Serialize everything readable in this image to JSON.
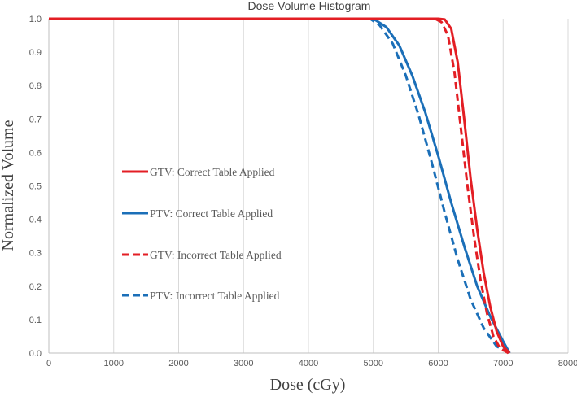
{
  "chart_data": {
    "type": "line",
    "title": "Dose Volume Histogram",
    "xlabel": "Dose (cGy)",
    "ylabel": "Normalized Volume",
    "xlim": [
      0,
      8000
    ],
    "ylim": [
      0,
      1.0
    ],
    "xticks": [
      "0",
      "1000",
      "2000",
      "3000",
      "4000",
      "5000",
      "6000",
      "7000",
      "8000"
    ],
    "yticks": [
      "0.0",
      "0.1",
      "0.2",
      "0.3",
      "0.4",
      "0.5",
      "0.6",
      "0.7",
      "0.8",
      "0.9",
      "1.0"
    ],
    "grid": "vertical",
    "legend_position": "left",
    "series": [
      {
        "name": "GTV: Correct Table Applied",
        "color": "#e31e24",
        "dash": "solid",
        "x": [
          0,
          6000,
          6100,
          6200,
          6300,
          6400,
          6500,
          6600,
          6700,
          6800,
          6900,
          7000,
          7100
        ],
        "y": [
          1.0,
          1.0,
          0.998,
          0.97,
          0.87,
          0.7,
          0.52,
          0.37,
          0.24,
          0.14,
          0.065,
          0.02,
          0.0
        ]
      },
      {
        "name": "PTV: Correct Table Applied",
        "color": "#1b6fb8",
        "dash": "solid",
        "x": [
          0,
          5000,
          5200,
          5400,
          5600,
          5800,
          6000,
          6200,
          6400,
          6600,
          6800,
          7000,
          7100
        ],
        "y": [
          1.0,
          1.0,
          0.975,
          0.92,
          0.83,
          0.72,
          0.59,
          0.45,
          0.32,
          0.2,
          0.11,
          0.035,
          0.0
        ]
      },
      {
        "name": "GTV: Incorrect Table Applied",
        "color": "#e31e24",
        "dash": "dashed",
        "x": [
          0,
          5950,
          6050,
          6150,
          6250,
          6350,
          6450,
          6550,
          6650,
          6750,
          6850,
          6950,
          7080
        ],
        "y": [
          1.0,
          1.0,
          0.99,
          0.95,
          0.84,
          0.67,
          0.5,
          0.35,
          0.22,
          0.12,
          0.05,
          0.015,
          0.0
        ]
      },
      {
        "name": "PTV: Incorrect Table Applied",
        "color": "#1b6fb8",
        "dash": "dashed",
        "x": [
          0,
          4950,
          5100,
          5300,
          5500,
          5700,
          5900,
          6100,
          6300,
          6500,
          6700,
          6900,
          7100
        ],
        "y": [
          1.0,
          1.0,
          0.98,
          0.925,
          0.83,
          0.71,
          0.57,
          0.42,
          0.28,
          0.16,
          0.075,
          0.02,
          0.0
        ]
      }
    ]
  }
}
